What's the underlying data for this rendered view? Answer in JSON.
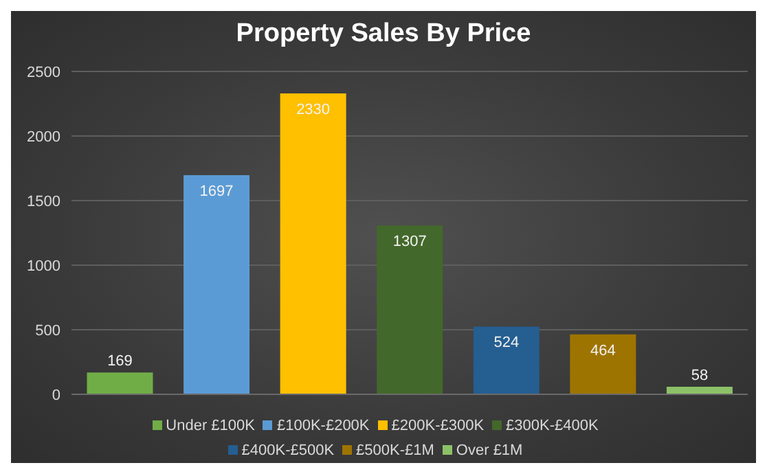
{
  "chart_data": {
    "type": "bar",
    "title": "Property Sales By Price",
    "categories": [
      null,
      null,
      null,
      null,
      null,
      null,
      null
    ],
    "series": [
      {
        "name": "Under £100K",
        "color": "#70ad47",
        "values": [
          169,
          null,
          null,
          null,
          null,
          null,
          null
        ]
      },
      {
        "name": "£100K-£200K",
        "color": "#5b9bd5",
        "values": [
          null,
          1697,
          null,
          null,
          null,
          null,
          null
        ]
      },
      {
        "name": "£200K-£300K",
        "color": "#ffc000",
        "values": [
          null,
          null,
          2330,
          null,
          null,
          null,
          null
        ]
      },
      {
        "name": "£300K-£400K",
        "color": "#43682b",
        "values": [
          null,
          null,
          null,
          1307,
          null,
          null,
          null
        ]
      },
      {
        "name": "£400K-£500K",
        "color": "#255e91",
        "values": [
          null,
          null,
          null,
          null,
          524,
          null,
          null
        ]
      },
      {
        "name": "£500K-£1M",
        "color": "#9e7400",
        "values": [
          null,
          null,
          null,
          null,
          null,
          464,
          null
        ]
      },
      {
        "name": "Over £1M",
        "color": "#8cc168",
        "values": [
          null,
          null,
          null,
          null,
          null,
          null,
          58
        ]
      }
    ],
    "ylim": [
      0,
      2500
    ],
    "yticks": [
      0,
      500,
      1000,
      1500,
      2000,
      2500
    ],
    "grid": "y",
    "legend": "bottom",
    "data_labels": true
  }
}
